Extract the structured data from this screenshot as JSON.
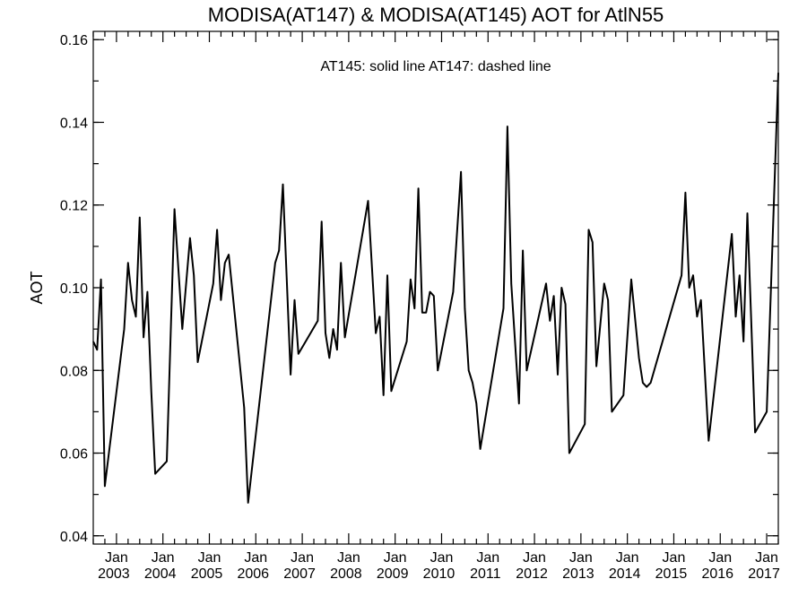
{
  "chart_data": {
    "type": "line",
    "title": "MODISA(AT147) & MODISA(AT145)  AOT for AtlN55",
    "subtitle": "AT145: solid line   AT147: dashed line",
    "xlabel": "",
    "ylabel": "AOT",
    "ylim": [
      0.038,
      0.162
    ],
    "xlim": [
      "2002-07",
      "2017-04"
    ],
    "y_ticks": [
      "0.04",
      "0.06",
      "0.08",
      "0.10",
      "0.12",
      "0.14",
      "0.16"
    ],
    "x_ticks": [
      {
        "month": "Jan",
        "year": "2003",
        "date": "2003-01"
      },
      {
        "month": "Jan",
        "year": "2004",
        "date": "2004-01"
      },
      {
        "month": "Jan",
        "year": "2005",
        "date": "2005-01"
      },
      {
        "month": "Jan",
        "year": "2006",
        "date": "2006-01"
      },
      {
        "month": "Jan",
        "year": "2007",
        "date": "2007-01"
      },
      {
        "month": "Jan",
        "year": "2008",
        "date": "2008-01"
      },
      {
        "month": "Jan",
        "year": "2009",
        "date": "2009-01"
      },
      {
        "month": "Jan",
        "year": "2010",
        "date": "2010-01"
      },
      {
        "month": "Jan",
        "year": "2011",
        "date": "2011-01"
      },
      {
        "month": "Jan",
        "year": "2012",
        "date": "2012-01"
      },
      {
        "month": "Jan",
        "year": "2013",
        "date": "2013-01"
      },
      {
        "month": "Jan",
        "year": "2014",
        "date": "2014-01"
      },
      {
        "month": "Jan",
        "year": "2015",
        "date": "2015-01"
      },
      {
        "month": "Jan",
        "year": "2016",
        "date": "2016-01"
      },
      {
        "month": "Jan",
        "year": "2017",
        "date": "2017-01"
      }
    ],
    "series": [
      {
        "style": "solid",
        "color": "#000000",
        "points": [
          [
            "2002-07",
            0.087
          ],
          [
            "2002-08",
            0.085
          ],
          [
            "2002-09",
            0.102
          ],
          [
            "2002-10",
            0.052
          ],
          [
            "2003-03",
            0.09
          ],
          [
            "2003-04",
            0.106
          ],
          [
            "2003-05",
            0.097
          ],
          [
            "2003-06",
            0.093
          ],
          [
            "2003-07",
            0.117
          ],
          [
            "2003-08",
            0.088
          ],
          [
            "2003-09",
            0.099
          ],
          [
            "2003-10",
            0.075
          ],
          [
            "2003-11",
            0.055
          ],
          [
            "2004-02",
            0.058
          ],
          [
            "2004-04",
            0.119
          ],
          [
            "2004-06",
            0.09
          ],
          [
            "2004-08",
            0.112
          ],
          [
            "2004-09",
            0.103
          ],
          [
            "2004-10",
            0.082
          ],
          [
            "2005-02",
            0.101
          ],
          [
            "2005-03",
            0.114
          ],
          [
            "2005-04",
            0.097
          ],
          [
            "2005-05",
            0.106
          ],
          [
            "2005-06",
            0.108
          ],
          [
            "2005-10",
            0.071
          ],
          [
            "2005-11",
            0.048
          ],
          [
            "2006-06",
            0.106
          ],
          [
            "2006-07",
            0.109
          ],
          [
            "2006-08",
            0.125
          ],
          [
            "2006-10",
            0.079
          ],
          [
            "2006-11",
            0.097
          ],
          [
            "2006-12",
            0.084
          ],
          [
            "2007-05",
            0.092
          ],
          [
            "2007-06",
            0.116
          ],
          [
            "2007-07",
            0.089
          ],
          [
            "2007-08",
            0.083
          ],
          [
            "2007-09",
            0.09
          ],
          [
            "2007-10",
            0.085
          ],
          [
            "2007-11",
            0.106
          ],
          [
            "2007-12",
            0.088
          ],
          [
            "2008-06",
            0.121
          ],
          [
            "2008-08",
            0.089
          ],
          [
            "2008-09",
            0.093
          ],
          [
            "2008-10",
            0.074
          ],
          [
            "2008-11",
            0.103
          ],
          [
            "2008-12",
            0.075
          ],
          [
            "2009-04",
            0.087
          ],
          [
            "2009-05",
            0.102
          ],
          [
            "2009-06",
            0.095
          ],
          [
            "2009-07",
            0.124
          ],
          [
            "2009-08",
            0.094
          ],
          [
            "2009-09",
            0.094
          ],
          [
            "2009-10",
            0.099
          ],
          [
            "2009-11",
            0.098
          ],
          [
            "2009-12",
            0.08
          ],
          [
            "2010-04",
            0.099
          ],
          [
            "2010-06",
            0.128
          ],
          [
            "2010-07",
            0.095
          ],
          [
            "2010-08",
            0.08
          ],
          [
            "2010-09",
            0.077
          ],
          [
            "2010-10",
            0.072
          ],
          [
            "2010-11",
            0.061
          ],
          [
            "2011-05",
            0.095
          ],
          [
            "2011-06",
            0.139
          ],
          [
            "2011-07",
            0.101
          ],
          [
            "2011-09",
            0.072
          ],
          [
            "2011-10",
            0.109
          ],
          [
            "2011-11",
            0.08
          ],
          [
            "2012-04",
            0.101
          ],
          [
            "2012-05",
            0.092
          ],
          [
            "2012-06",
            0.098
          ],
          [
            "2012-07",
            0.079
          ],
          [
            "2012-08",
            0.1
          ],
          [
            "2012-09",
            0.096
          ],
          [
            "2012-10",
            0.06
          ],
          [
            "2013-02",
            0.067
          ],
          [
            "2013-03",
            0.114
          ],
          [
            "2013-04",
            0.111
          ],
          [
            "2013-05",
            0.081
          ],
          [
            "2013-07",
            0.101
          ],
          [
            "2013-08",
            0.097
          ],
          [
            "2013-09",
            0.07
          ],
          [
            "2013-12",
            0.074
          ],
          [
            "2014-02",
            0.102
          ],
          [
            "2014-04",
            0.083
          ],
          [
            "2014-05",
            0.077
          ],
          [
            "2014-06",
            0.076
          ],
          [
            "2014-07",
            0.077
          ],
          [
            "2015-03",
            0.103
          ],
          [
            "2015-04",
            0.123
          ],
          [
            "2015-05",
            0.1
          ],
          [
            "2015-06",
            0.103
          ],
          [
            "2015-07",
            0.093
          ],
          [
            "2015-08",
            0.097
          ],
          [
            "2015-10",
            0.063
          ],
          [
            "2016-04",
            0.113
          ],
          [
            "2016-05",
            0.093
          ],
          [
            "2016-06",
            0.103
          ],
          [
            "2016-07",
            0.087
          ],
          [
            "2016-08",
            0.118
          ],
          [
            "2016-09",
            0.092
          ],
          [
            "2016-10",
            0.065
          ],
          [
            "2017-01",
            0.07
          ],
          [
            "2017-04",
            0.152
          ]
        ]
      }
    ],
    "grid": false,
    "legend": "none"
  }
}
